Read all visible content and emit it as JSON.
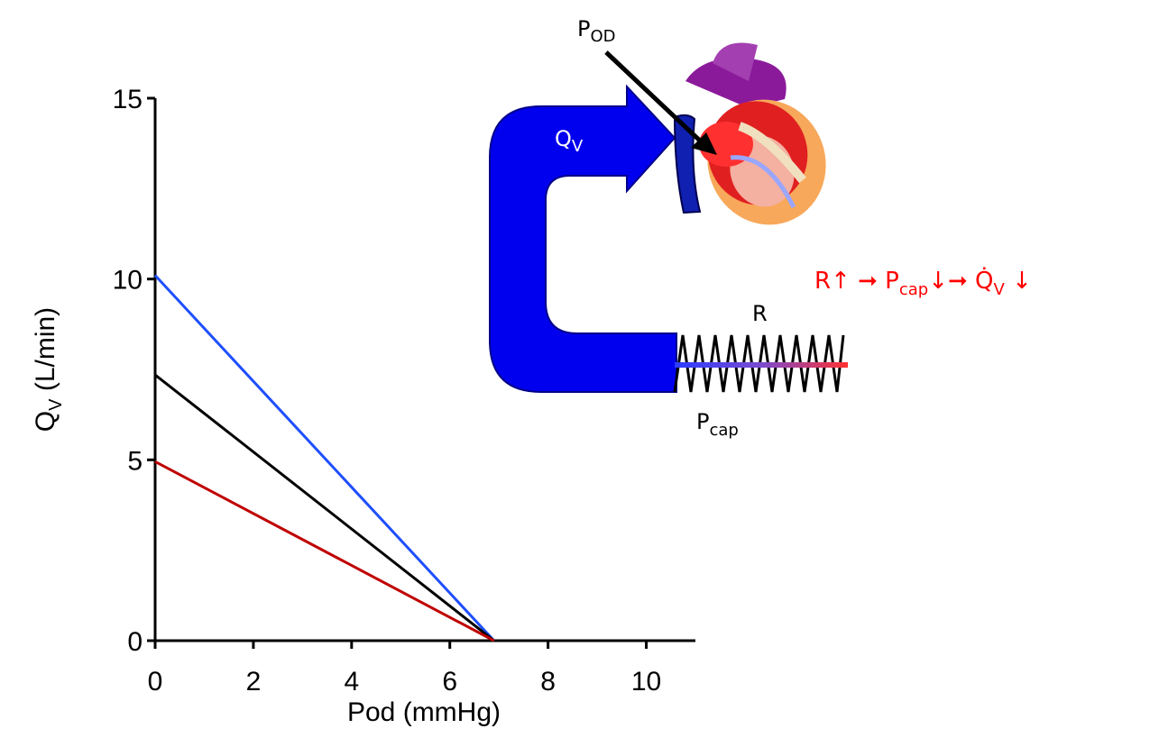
{
  "chart_data": {
    "type": "line",
    "x_label": "Pod (mmHg)",
    "y_label": {
      "main": "Q",
      "sub": "V",
      "rest": " (L/min)"
    },
    "x": [
      0,
      6.9
    ],
    "series": [
      {
        "color": "#1f4fff",
        "values": [
          10.1,
          0
        ]
      },
      {
        "color": "#000000",
        "values": [
          7.35,
          0
        ]
      },
      {
        "color": "#c00000",
        "values": [
          4.95,
          0
        ]
      }
    ],
    "xlim": [
      0,
      11
    ],
    "ylim": [
      0,
      15
    ],
    "xticks": [
      0,
      2,
      4,
      6,
      8,
      10
    ],
    "yticks": [
      0,
      5,
      10,
      15
    ]
  },
  "diagram": {
    "pod": {
      "main": "P",
      "sub": "OD"
    },
    "qv": {
      "main": "Q",
      "sub": "V"
    },
    "r": "R",
    "pcap": {
      "main": "P",
      "sub": "cap"
    },
    "formula": [
      "R↑ ➞ P",
      "cap",
      "↓➞ Q̇",
      "V",
      " ↓"
    ]
  }
}
